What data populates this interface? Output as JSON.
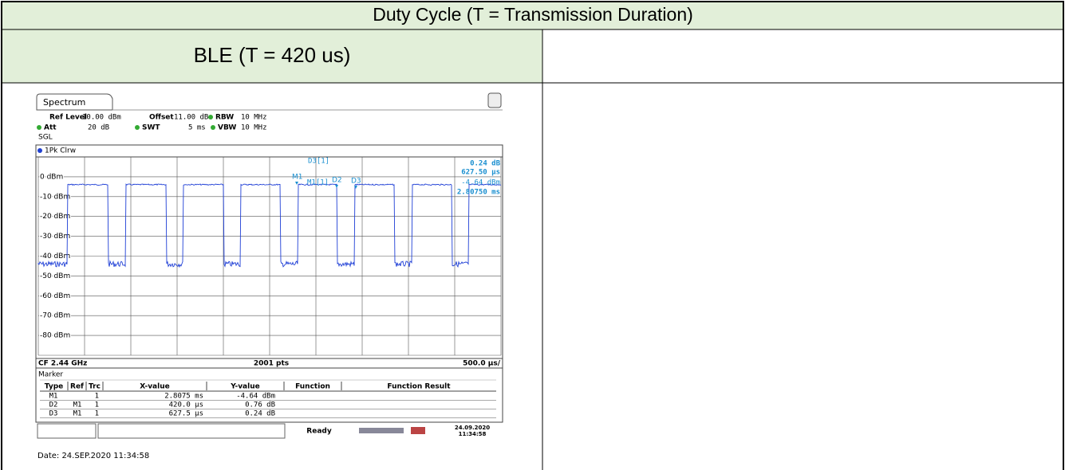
{
  "table": {
    "title": "Duty Cycle (T = Transmission Duration)",
    "subtitle": "BLE (T = 420 us)"
  },
  "screenshot": {
    "tab": "Spectrum",
    "settings": [
      {
        "label": "Ref Level",
        "value": "10.00 dBm"
      },
      {
        "label": "Offset",
        "value": "11.00 dB"
      },
      {
        "label": "RBW",
        "value": "10 MHz"
      },
      {
        "label": "Att",
        "value": "20 dB"
      },
      {
        "label": "SWT",
        "value": "5 ms"
      },
      {
        "label": "VBW",
        "value": "10 MHz"
      }
    ],
    "mode": "SGL",
    "trace": "1Pk Clrw",
    "y_labels": [
      "0 dBm",
      "-10 dBm",
      "-20 dBm",
      "-30 dBm",
      "-40 dBm",
      "-50 dBm",
      "-60 dBm",
      "-70 dBm",
      "-80 dBm"
    ],
    "readout": {
      "d3": "D3[1]",
      "d3_y": "0.24 dB",
      "d3_x": "627.50 µs",
      "m1": "M1[1]",
      "m1_y": "-4.64 dBm",
      "m1_x": "2.80750 ms"
    },
    "marker_tags": [
      "M1",
      "D2",
      "D3"
    ],
    "footer": {
      "center": "CF 2.44 GHz",
      "points": "2001 pts",
      "span": "500.0 µs/"
    },
    "marker_table": {
      "title": "Marker",
      "columns": [
        "Type",
        "Ref",
        "Trc",
        "X-value",
        "Y-value",
        "Function",
        "Function Result"
      ],
      "rows": [
        [
          "M1",
          "",
          "1",
          "2.8075 ms",
          "-4.64 dBm"
        ],
        [
          "D2",
          "M1",
          "1",
          "420.0 µs",
          "0.76 dB"
        ],
        [
          "D3",
          "M1",
          "1",
          "627.5 µs",
          "0.24 dB"
        ]
      ]
    },
    "status": "Ready",
    "date": "24.09.2020",
    "time": "11:34:58"
  },
  "caption": "Date: 24.SEP.2020 11:34:58"
}
